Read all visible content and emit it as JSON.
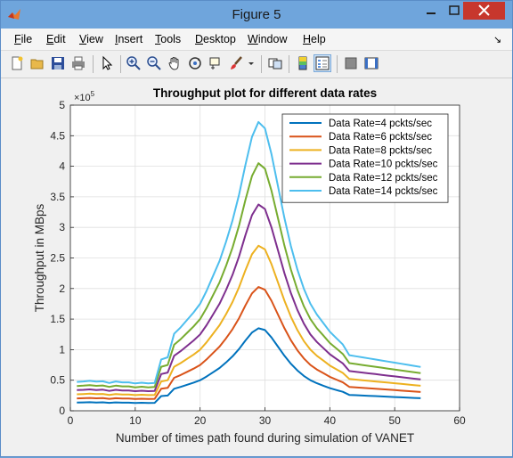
{
  "window": {
    "title": "Figure 5",
    "accent": "#6fa5dc",
    "close_color": "#c7372d"
  },
  "menu": [
    {
      "label": "File",
      "u": "F",
      "rest": "ile"
    },
    {
      "label": "Edit",
      "u": "E",
      "rest": "dit"
    },
    {
      "label": "View",
      "u": "V",
      "rest": "iew"
    },
    {
      "label": "Insert",
      "u": "I",
      "rest": "nsert"
    },
    {
      "label": "Tools",
      "u": "T",
      "rest": "ools"
    },
    {
      "label": "Desktop",
      "u": "D",
      "rest": "esktop"
    },
    {
      "label": "Window",
      "u": "W",
      "rest": "indow"
    },
    {
      "label": "Help",
      "u": "H",
      "rest": "elp"
    }
  ],
  "toolbar_icons": [
    "new-figure-icon",
    "open-file-icon",
    "save-icon",
    "print-icon",
    "pointer-icon",
    "zoom-in-icon",
    "zoom-out-icon",
    "pan-icon",
    "rotate-3d-icon",
    "data-cursor-icon",
    "brush-icon",
    "link-plot-icon",
    "insert-colorbar-icon",
    "insert-legend-icon",
    "hide-plot-tools-icon",
    "show-plot-tools-icon"
  ],
  "chart_data": {
    "type": "line",
    "title": "Throughput plot for different data rates",
    "xlabel": "Number of times path found during simulation of VANET",
    "ylabel": "Throughput in MBps",
    "y_exponent": "×10",
    "y_exponent_power": "5",
    "xlim": [
      0,
      60
    ],
    "ylim": [
      0,
      5
    ],
    "xticks": [
      "0",
      "10",
      "20",
      "30",
      "40",
      "50",
      "60"
    ],
    "yticks": [
      "0",
      "0.5",
      "1",
      "1.5",
      "2",
      "2.5",
      "3",
      "3.5",
      "4",
      "4.5",
      "5"
    ],
    "grid": true,
    "legend_position": "top-right",
    "x": [
      1,
      2,
      3,
      4,
      5,
      6,
      7,
      8,
      9,
      10,
      11,
      12,
      13,
      14,
      15,
      16,
      17,
      18,
      19,
      20,
      21,
      22,
      23,
      24,
      25,
      26,
      27,
      28,
      29,
      30,
      31,
      32,
      33,
      34,
      35,
      36,
      37,
      38,
      39,
      40,
      41,
      42,
      43,
      44,
      45,
      46,
      47,
      48,
      49,
      50,
      51,
      52,
      53,
      54
    ],
    "base": [
      1.35,
      1.37,
      1.4,
      1.36,
      1.38,
      1.3,
      1.37,
      1.33,
      1.33,
      1.28,
      1.31,
      1.28,
      1.3,
      2.4,
      2.5,
      3.6,
      3.9,
      4.25,
      4.6,
      5.0,
      5.6,
      6.3,
      7.0,
      7.9,
      8.9,
      10.1,
      11.5,
      12.8,
      13.5,
      13.2,
      12.0,
      10.5,
      9.0,
      7.7,
      6.6,
      5.7,
      5.0,
      4.5,
      4.1,
      3.7,
      3.4,
      3.1,
      2.6,
      2.55,
      2.5,
      2.45,
      2.4,
      2.35,
      2.3,
      2.25,
      2.2,
      2.15,
      2.1,
      2.05
    ],
    "series": [
      {
        "name": "Data Rate=4 pckts/sec",
        "color": "#0072bd",
        "scale": 1.0
      },
      {
        "name": "Data Rate=6 pckts/sec",
        "color": "#d95319",
        "scale": 1.5
      },
      {
        "name": "Data Rate=8 pckts/sec",
        "color": "#edb120",
        "scale": 2.0
      },
      {
        "name": "Data Rate=10 pckts/sec",
        "color": "#7e2f8e",
        "scale": 2.5
      },
      {
        "name": "Data Rate=12 pckts/sec",
        "color": "#77ac30",
        "scale": 3.0
      },
      {
        "name": "Data Rate=14 pckts/sec",
        "color": "#4dbeee",
        "scale": 3.5
      }
    ]
  }
}
